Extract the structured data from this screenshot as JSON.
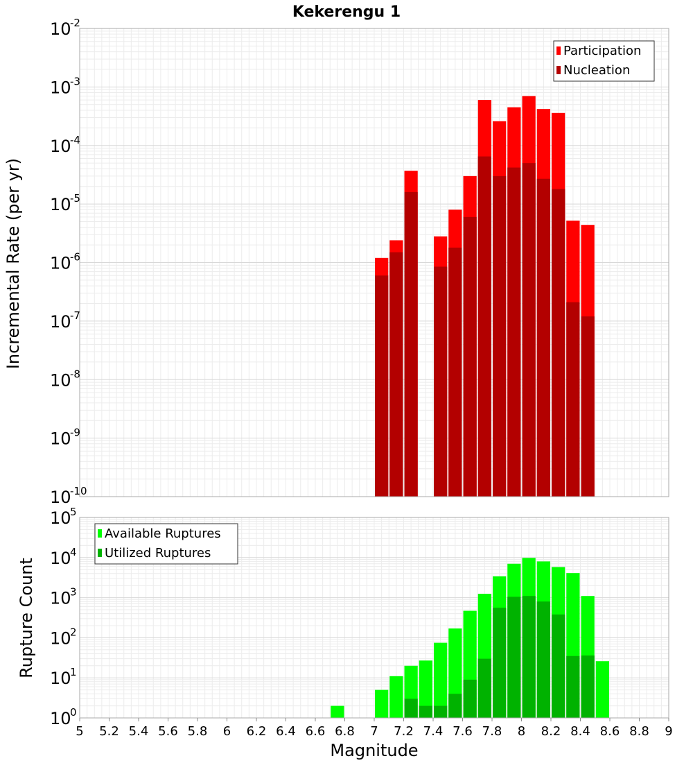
{
  "chart_data": [
    {
      "type": "bar",
      "title": "Kekerengu 1",
      "xlabel": "",
      "ylabel": "Incremental Rate (per yr)",
      "y_scale": "log",
      "ylim_exponents": [
        -10,
        -2
      ],
      "xlim": [
        5,
        9
      ],
      "bin_width": 0.1,
      "grid": true,
      "legend_placement": "top-right",
      "x": [
        7.05,
        7.15,
        7.25,
        7.45,
        7.55,
        7.65,
        7.75,
        7.85,
        7.95,
        8.05,
        8.15,
        8.25,
        8.35,
        8.45
      ],
      "series": [
        {
          "name": "Participation",
          "color": "#ff0000",
          "values": [
            1.2e-06,
            2.4e-06,
            3.7e-05,
            2.8e-06,
            8e-06,
            3e-05,
            0.0006,
            0.00026,
            0.00045,
            0.0007,
            0.00042,
            0.00036,
            5.2e-06,
            4.4e-06
          ]
        },
        {
          "name": "Nucleation",
          "color": "#b30000",
          "values": [
            6e-07,
            1.5e-06,
            1.6e-05,
            8.5e-07,
            1.8e-06,
            6e-06,
            6.5e-05,
            3e-05,
            4.2e-05,
            5e-05,
            2.7e-05,
            1.8e-05,
            2.1e-07,
            1.2e-07
          ]
        }
      ]
    },
    {
      "type": "bar",
      "title": "",
      "xlabel": "Magnitude",
      "ylabel": "Rupture Count",
      "y_scale": "log",
      "ylim_exponents": [
        0,
        5
      ],
      "xlim": [
        5,
        9
      ],
      "bin_width": 0.1,
      "grid": true,
      "legend_placement": "top-left",
      "x_ticks": [
        "5",
        "5.2",
        "5.4",
        "5.6",
        "5.8",
        "6",
        "6.2",
        "6.4",
        "6.6",
        "6.8",
        "7",
        "7.2",
        "7.4",
        "7.6",
        "7.8",
        "8",
        "8.2",
        "8.4",
        "8.6",
        "8.8",
        "9"
      ],
      "x": [
        6.75,
        6.95,
        7.05,
        7.15,
        7.25,
        7.35,
        7.45,
        7.55,
        7.65,
        7.75,
        7.85,
        7.95,
        8.05,
        8.15,
        8.25,
        8.35,
        8.45,
        8.55
      ],
      "series": [
        {
          "name": "Available Ruptures",
          "color": "#00ff00",
          "values": [
            2,
            1,
            5,
            11,
            20,
            27,
            75,
            170,
            470,
            1250,
            3400,
            7000,
            9800,
            8000,
            5800,
            4100,
            1100,
            26
          ]
        },
        {
          "name": "Utilized Ruptures",
          "color": "#00b200",
          "values": [
            0,
            0,
            1,
            1,
            3,
            2,
            2,
            4,
            9,
            30,
            560,
            1050,
            1100,
            800,
            380,
            35,
            36,
            1
          ]
        }
      ]
    }
  ]
}
